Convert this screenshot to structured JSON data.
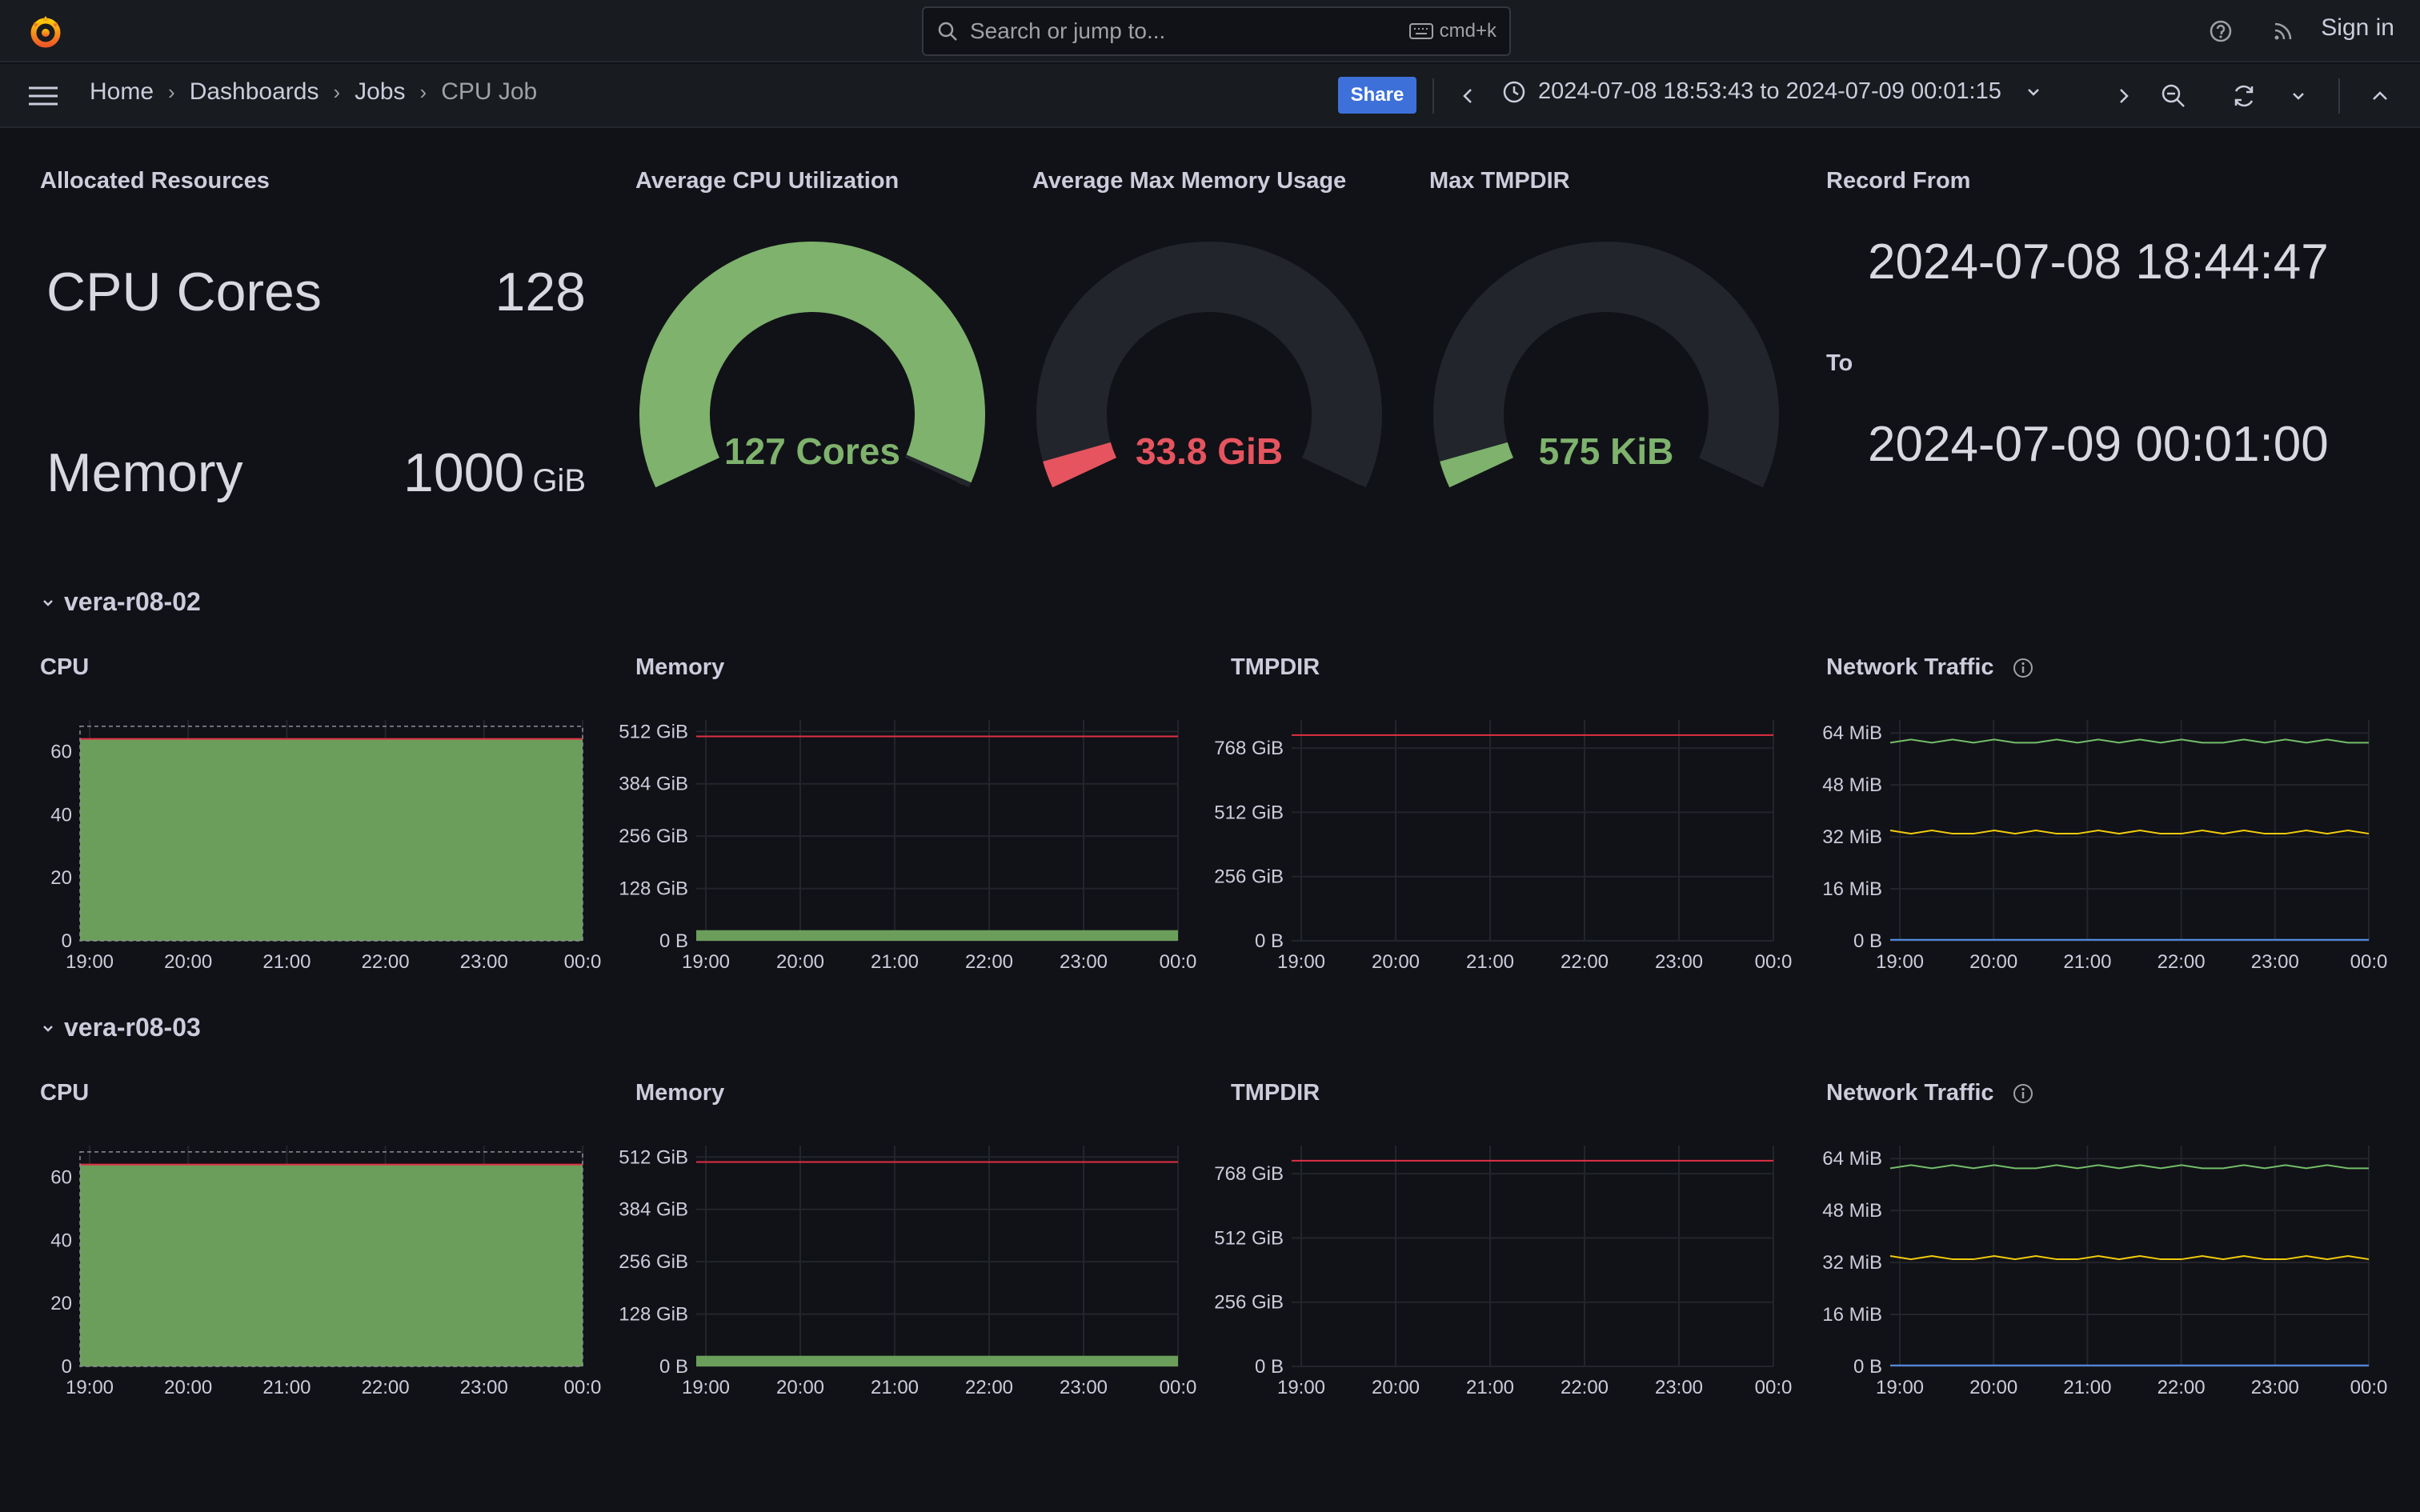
{
  "topbar": {
    "search_placeholder": "Search or jump to...",
    "search_shortcut": "cmd+k",
    "sign_in": "Sign in"
  },
  "breadcrumbs": [
    "Home",
    "Dashboards",
    "Jobs",
    "CPU Job"
  ],
  "toolbar": {
    "share": "Share",
    "time_range": "2024-07-08 18:53:43 to 2024-07-09 00:01:15"
  },
  "allocated": {
    "title": "Allocated Resources",
    "cpu_label": "CPU Cores",
    "cpu_value": "128",
    "mem_label": "Memory",
    "mem_value": "1000",
    "mem_unit": "GiB"
  },
  "gauges": [
    {
      "title": "Average CPU Utilization",
      "text": "127 Cores",
      "value": 127,
      "min": 0,
      "max": 128,
      "color": "#7eb26d"
    },
    {
      "title": "Average Max Memory Usage",
      "text": "33.8 GiB",
      "value": 33.8,
      "min": 0,
      "max": 1000,
      "color": "#e5545f"
    },
    {
      "title": "Max TMPDIR",
      "text": "575 KiB",
      "value": 0.00055,
      "min": 0,
      "max": 1,
      "color": "#7eb26d"
    }
  ],
  "record": {
    "from_label": "Record From",
    "from_value": "2024-07-08 18:44:47",
    "to_label": "To",
    "to_value": "2024-07-09 00:01:00"
  },
  "colors": {
    "green": "#73bf69",
    "green_fill": "#6b9e5b",
    "yellow": "#f2cc0c",
    "red": "#e02f44",
    "blue": "#5794f2"
  },
  "rows": [
    {
      "name": "vera-r08-02",
      "titles": {
        "cpu": "CPU",
        "memory": "Memory",
        "tmpdir": "TMPDIR",
        "network": "Network Traffic"
      }
    },
    {
      "name": "vera-r08-03",
      "titles": {
        "cpu": "CPU",
        "memory": "Memory",
        "tmpdir": "TMPDIR",
        "network": "Network Traffic"
      }
    }
  ],
  "chart_data": [
    {
      "id": "cpu",
      "type": "area",
      "x_ticks": [
        "19:00",
        "20:00",
        "21:00",
        "22:00",
        "23:00",
        "00:0"
      ],
      "y_ticks": [
        "0",
        "20",
        "40",
        "60"
      ],
      "ylim": [
        0,
        70
      ],
      "series": [
        {
          "values": [
            64,
            64,
            64,
            64,
            64,
            64
          ]
        }
      ],
      "threshold": 64
    },
    {
      "id": "memory",
      "type": "area",
      "x_ticks": [
        "19:00",
        "20:00",
        "21:00",
        "22:00",
        "23:00",
        "00:0"
      ],
      "y_ticks": [
        "0 B",
        "128 GiB",
        "256 GiB",
        "384 GiB",
        "512 GiB"
      ],
      "ylim": [
        0,
        540
      ],
      "series": [
        {
          "values": [
            33.8,
            33.8,
            33.8,
            33.8,
            33.8,
            33.8
          ]
        }
      ],
      "threshold": 500
    },
    {
      "id": "tmpdir",
      "type": "line",
      "x_ticks": [
        "19:00",
        "20:00",
        "21:00",
        "22:00",
        "23:00",
        "00:0"
      ],
      "y_ticks": [
        "0 B",
        "256 GiB",
        "512 GiB",
        "768 GiB"
      ],
      "ylim": [
        0,
        880
      ],
      "series": [
        {
          "values": [
            0,
            0,
            0,
            0,
            0,
            0
          ]
        }
      ],
      "threshold": 820
    },
    {
      "id": "network",
      "type": "line",
      "x_ticks": [
        "19:00",
        "20:00",
        "21:00",
        "22:00",
        "23:00",
        "00:0"
      ],
      "y_ticks": [
        "0 B",
        "16 MiB",
        "32 MiB",
        "48 MiB",
        "64 MiB"
      ],
      "ylim": [
        0,
        68
      ],
      "series": [
        {
          "color": "#73bf69",
          "values": [
            61,
            62,
            61,
            62,
            61,
            62,
            61,
            61,
            62,
            61,
            62,
            61,
            62,
            61,
            62,
            61,
            61,
            62,
            61,
            62,
            61,
            62,
            61,
            61
          ]
        },
        {
          "color": "#f2cc0c",
          "values": [
            34,
            33,
            34,
            33,
            33,
            34,
            33,
            34,
            33,
            33,
            34,
            33,
            34,
            33,
            33,
            34,
            33,
            34,
            33,
            33,
            34,
            33,
            34,
            33
          ]
        },
        {
          "color": "#5794f2",
          "values": [
            0.3,
            0.3,
            0.3,
            0.3,
            0.3,
            0.3,
            0.3,
            0.3,
            0.3,
            0.3,
            0.3,
            0.3,
            0.3,
            0.3,
            0.3,
            0.3,
            0.3,
            0.3,
            0.3,
            0.3,
            0.3,
            0.3,
            0.3,
            0.3
          ]
        }
      ]
    }
  ]
}
